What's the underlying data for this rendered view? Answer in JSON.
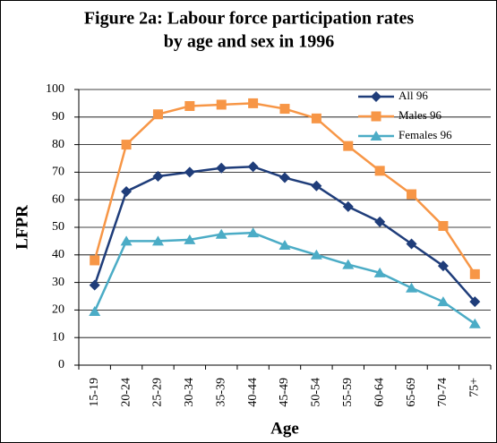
{
  "chart_data": {
    "type": "line",
    "title": [
      "Figure 2a: Labour force participation rates",
      "by age and sex in 1996"
    ],
    "x_label": "Age",
    "y_label": "LFPR",
    "categories": [
      "15-19",
      "20-24",
      "25-29",
      "30-34",
      "35-39",
      "40-44",
      "45-49",
      "50-54",
      "55-59",
      "60-64",
      "65-69",
      "70-74",
      "75+"
    ],
    "series": [
      {
        "name": "All 96",
        "color": "#1f3d7a",
        "marker": "diamond",
        "values": [
          29,
          63,
          68.5,
          70,
          71.5,
          72,
          68,
          65,
          57.5,
          52,
          44,
          36,
          23
        ]
      },
      {
        "name": "Males 96",
        "color": "#f79646",
        "marker": "square",
        "values": [
          38,
          80,
          91,
          94,
          94.5,
          95,
          93,
          89.5,
          79.5,
          70.5,
          62,
          50.5,
          33
        ]
      },
      {
        "name": "Females 96",
        "color": "#4bacc6",
        "marker": "triangle",
        "values": [
          19.5,
          45,
          45,
          45.5,
          47.5,
          48,
          43.5,
          40,
          36.5,
          33.5,
          28,
          23,
          15
        ]
      }
    ],
    "ylim": [
      0,
      100
    ],
    "yticks": [
      0,
      10,
      20,
      30,
      40,
      50,
      60,
      70,
      80,
      90,
      100
    ],
    "grid": true,
    "legend": "top-right"
  }
}
